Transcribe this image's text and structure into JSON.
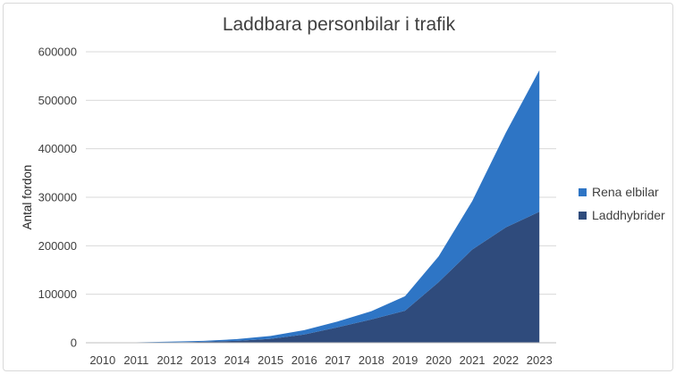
{
  "chart_data": {
    "type": "area",
    "stacked": true,
    "title": "Laddbara personbilar i trafik",
    "xlabel": "",
    "ylabel": "Antal fordon",
    "x": [
      "2010",
      "2011",
      "2012",
      "2013",
      "2014",
      "2015",
      "2016",
      "2017",
      "2018",
      "2019",
      "2020",
      "2021",
      "2022",
      "2023"
    ],
    "ylim": [
      0,
      600000
    ],
    "yticks": [
      0,
      100000,
      200000,
      300000,
      400000,
      500000,
      600000
    ],
    "ytick_labels": [
      "0",
      "100000",
      "200000",
      "300000",
      "400000",
      "500000",
      "600000"
    ],
    "grid": true,
    "legend": "right",
    "series": [
      {
        "name": "Laddhybrider",
        "color": "#2f4b7c",
        "values": [
          100,
          300,
          800,
          2000,
          4000,
          8000,
          17000,
          32000,
          48000,
          66000,
          125000,
          192000,
          238000,
          270000
        ]
      },
      {
        "name": "Rena elbilar",
        "color": "#2e75c5",
        "values": [
          200,
          700,
          1500,
          2000,
          3500,
          6000,
          9000,
          12000,
          17000,
          30000,
          53000,
          100000,
          195000,
          292000
        ]
      }
    ]
  }
}
